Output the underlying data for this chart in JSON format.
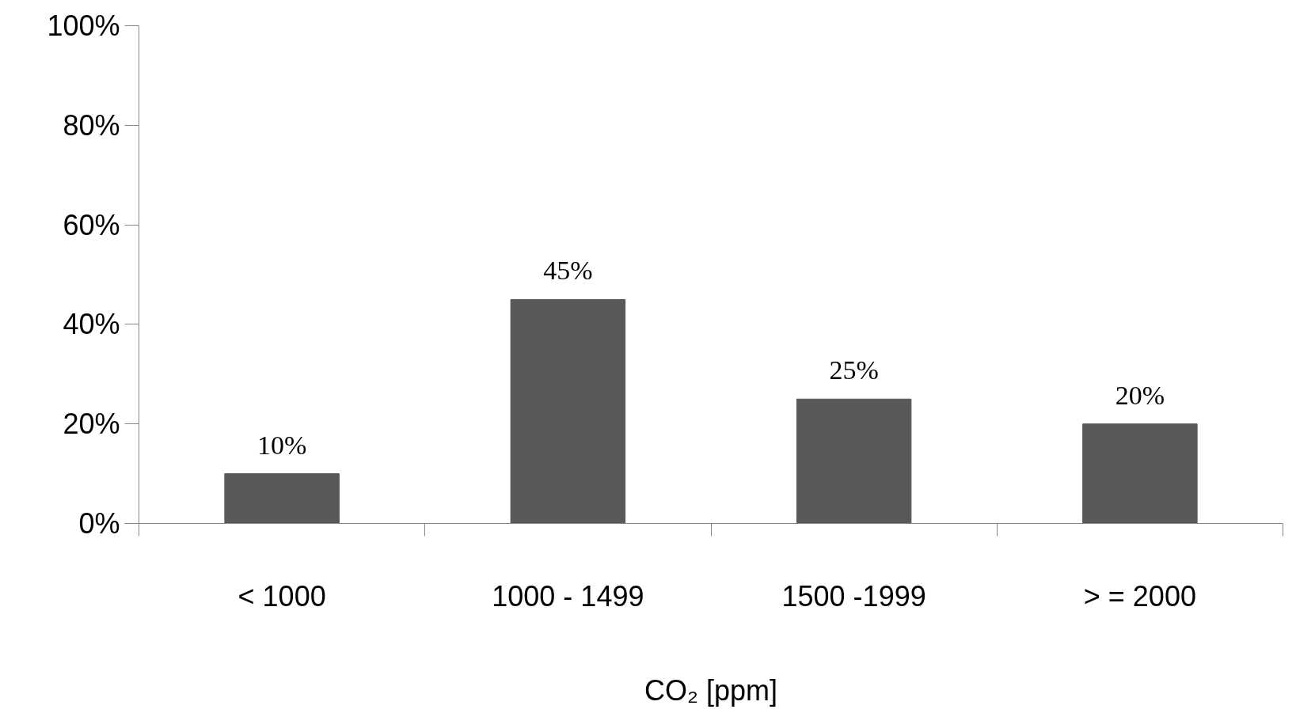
{
  "chart_data": {
    "type": "bar",
    "categories": [
      "< 1000",
      "1000 - 1499",
      "1500 -1999",
      "> = 2000"
    ],
    "values": [
      10,
      45,
      25,
      20
    ],
    "value_labels": [
      "10%",
      "45%",
      "25%",
      "20%"
    ],
    "color": "#595959",
    "xlabel": "CO₂ [ppm]",
    "ylim": [
      0,
      100
    ],
    "yticks": [
      {
        "value": 0,
        "label": "0%"
      },
      {
        "value": 20,
        "label": "20%"
      },
      {
        "value": 40,
        "label": "40%"
      },
      {
        "value": 60,
        "label": "60%"
      },
      {
        "value": 80,
        "label": "80%"
      },
      {
        "value": 100,
        "label": "100%"
      }
    ],
    "grid": false
  }
}
